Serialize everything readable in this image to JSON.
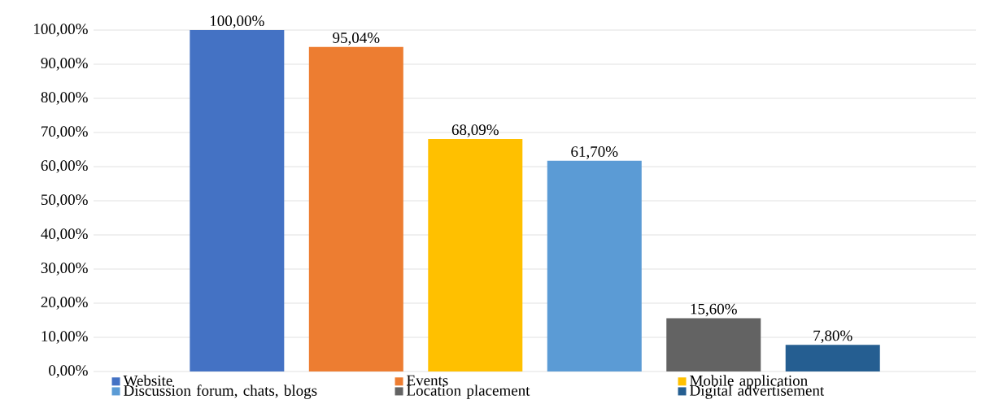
{
  "chart_data": {
    "type": "bar",
    "categories": [
      null
    ],
    "series": [
      {
        "name": "Website",
        "color": "#4472c4",
        "values": [
          100
        ],
        "value_labels": [
          "100,00%"
        ]
      },
      {
        "name": "Events",
        "color": "#ed7d31",
        "values": [
          95.04
        ],
        "value_labels": [
          "95,04%"
        ]
      },
      {
        "name": "Mobile application",
        "color": "#ffc000",
        "values": [
          68.09
        ],
        "value_labels": [
          "68,09%"
        ]
      },
      {
        "name": "Discussion forum, chats, blogs",
        "color": "#5b9bd5",
        "values": [
          61.7
        ],
        "value_labels": [
          "61,70%"
        ]
      },
      {
        "name": "Location placement",
        "color": "#636363",
        "values": [
          15.6
        ],
        "value_labels": [
          "15,60%"
        ]
      },
      {
        "name": "Digital advertisement",
        "color": "#255e91",
        "values": [
          7.8
        ],
        "value_labels": [
          "7,80%"
        ]
      }
    ],
    "ylim": [
      0,
      100
    ],
    "yticks": [
      {
        "value": 0,
        "label": "0,00%"
      },
      {
        "value": 10,
        "label": "10,00%"
      },
      {
        "value": 20,
        "label": "20,00%"
      },
      {
        "value": 30,
        "label": "30,00%"
      },
      {
        "value": 40,
        "label": "40,00%"
      },
      {
        "value": 50,
        "label": "50,00%"
      },
      {
        "value": 60,
        "label": "60,00%"
      },
      {
        "value": 70,
        "label": "70,00%"
      },
      {
        "value": 80,
        "label": "80,00%"
      },
      {
        "value": 90,
        "label": "90,00%"
      },
      {
        "value": 100,
        "label": "100,00%"
      }
    ],
    "grid": "y",
    "legend": "bottom"
  }
}
